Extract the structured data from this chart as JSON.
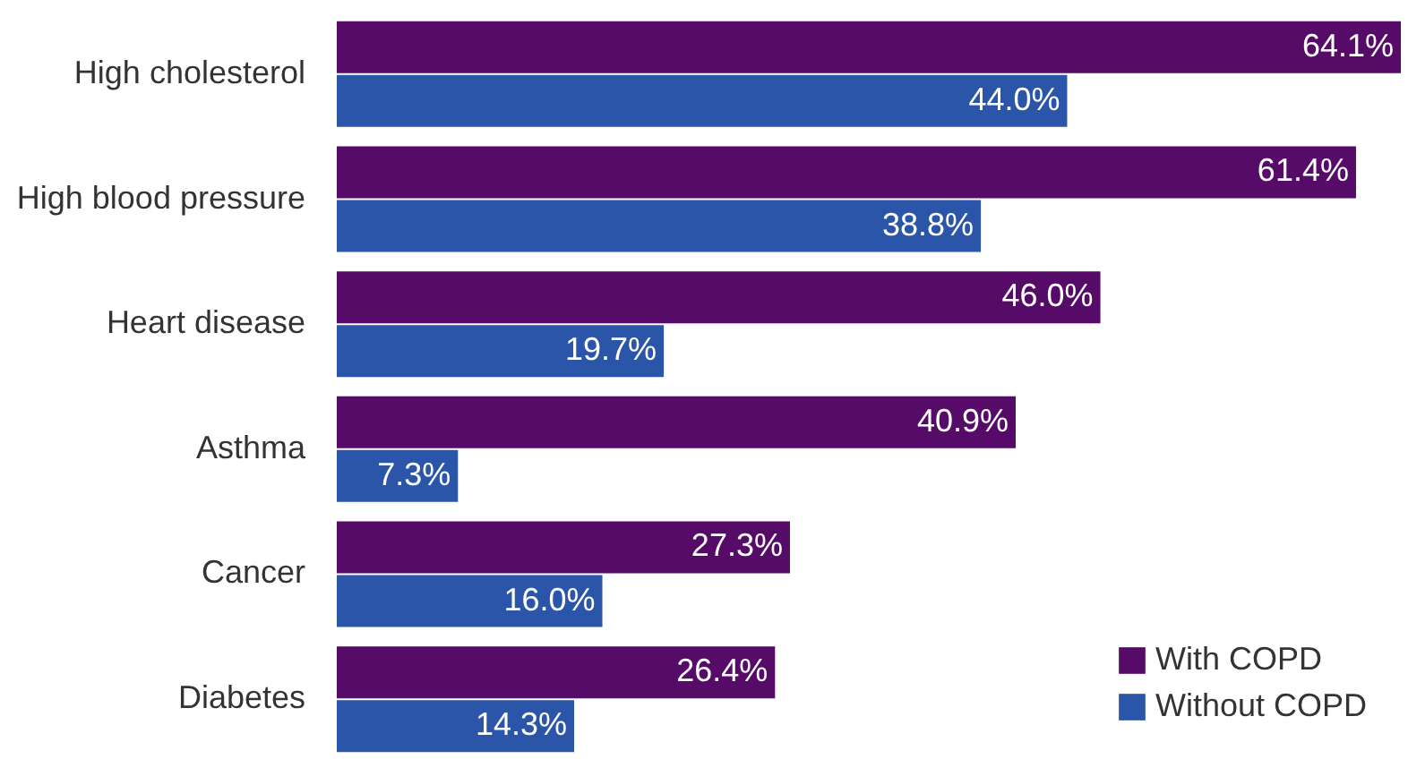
{
  "chart_data": {
    "type": "bar",
    "orientation": "horizontal",
    "categories": [
      "High cholesterol",
      "High blood pressure",
      "Heart disease",
      "Asthma",
      "Cancer",
      "Diabetes"
    ],
    "series": [
      {
        "name": "With COPD",
        "color": "#560b68",
        "values": [
          64.1,
          61.4,
          46.0,
          40.9,
          27.3,
          26.4
        ],
        "value_labels": [
          "64.1%",
          "61.4%",
          "46.0%",
          "40.9%",
          "27.3%",
          "26.4%"
        ]
      },
      {
        "name": "Without COPD",
        "color": "#2b55a8",
        "values": [
          44.0,
          38.8,
          19.7,
          7.3,
          16.0,
          14.3
        ],
        "value_labels": [
          "44.0%",
          "38.8%",
          "19.7%",
          "7.3%",
          "16.0%",
          "14.3%"
        ]
      }
    ],
    "legend": "bottom right"
  }
}
